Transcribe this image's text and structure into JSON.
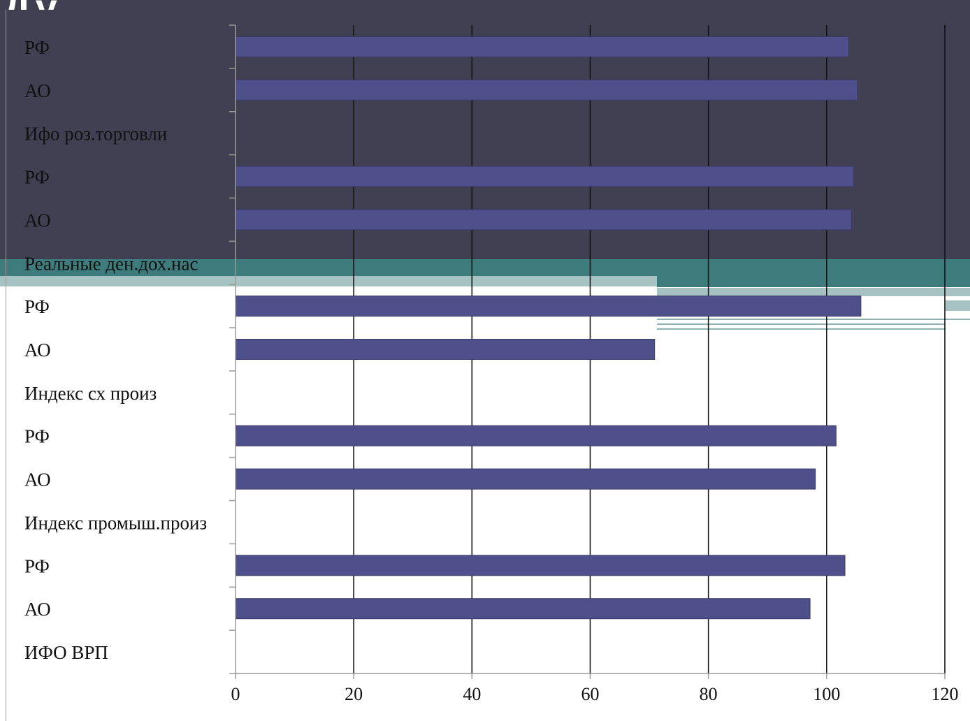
{
  "slide": {
    "title_fragment": "Ду",
    "colors": {
      "header_bg": "#414052",
      "teal_dark": "#3e7b7c",
      "teal_light": "#a7c2c3",
      "bar": "#4f4f8c"
    }
  },
  "chart_data": {
    "type": "bar",
    "orientation": "horizontal",
    "title": "",
    "xlabel": "",
    "ylabel": "",
    "xlim": [
      0,
      120
    ],
    "x_ticks": [
      0,
      20,
      40,
      60,
      80,
      100,
      120
    ],
    "grid": "vertical",
    "legend": "none",
    "categories": [
      "РФ",
      "АО",
      "Ифо роз.торговли",
      "РФ",
      "АО",
      "Реальные ден.дох.нас",
      "РФ",
      "АО",
      "Индекс сх произ",
      "РФ",
      "АО",
      "Индекс промыш.произ",
      "РФ",
      "АО",
      "ИФО ВРП"
    ],
    "values": [
      103.7,
      105.2,
      null,
      104.6,
      104.2,
      null,
      105.8,
      70.9,
      null,
      101.6,
      98.1,
      null,
      103.1,
      97.2,
      null
    ]
  }
}
